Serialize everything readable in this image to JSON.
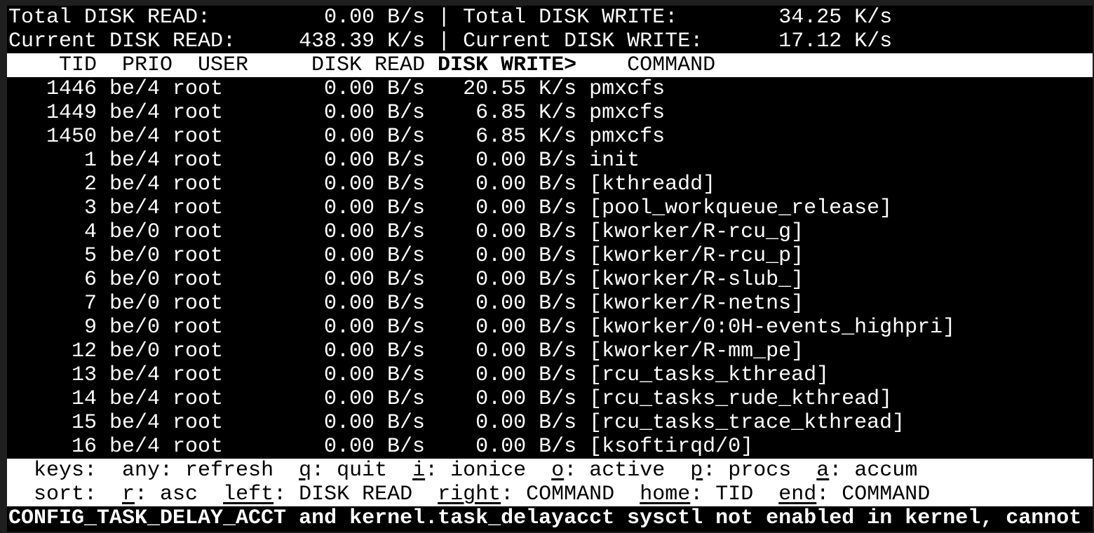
{
  "summary": {
    "total_read_label": "Total DISK READ:",
    "total_read": "0.00 B/s",
    "total_write_label": "Total DISK WRITE:",
    "total_write": "34.25 K/s",
    "current_read_label": "Current DISK READ:",
    "current_read": "438.39 K/s",
    "current_write_label": "Current DISK WRITE:",
    "current_write": "17.12 K/s",
    "separator": "|"
  },
  "header": {
    "tid": "TID",
    "prio": "PRIO",
    "user": "USER",
    "disk_read": "DISK READ",
    "disk_write": "DISK WRITE>",
    "command": "COMMAND"
  },
  "rows": [
    {
      "tid": "1446",
      "prio": "be/4",
      "user": "root",
      "read": "0.00 B/s",
      "write": "20.55 K/s",
      "command": "pmxcfs"
    },
    {
      "tid": "1449",
      "prio": "be/4",
      "user": "root",
      "read": "0.00 B/s",
      "write": "6.85 K/s",
      "command": "pmxcfs"
    },
    {
      "tid": "1450",
      "prio": "be/4",
      "user": "root",
      "read": "0.00 B/s",
      "write": "6.85 K/s",
      "command": "pmxcfs"
    },
    {
      "tid": "1",
      "prio": "be/4",
      "user": "root",
      "read": "0.00 B/s",
      "write": "0.00 B/s",
      "command": "init"
    },
    {
      "tid": "2",
      "prio": "be/4",
      "user": "root",
      "read": "0.00 B/s",
      "write": "0.00 B/s",
      "command": "[kthreadd]"
    },
    {
      "tid": "3",
      "prio": "be/4",
      "user": "root",
      "read": "0.00 B/s",
      "write": "0.00 B/s",
      "command": "[pool_workqueue_release]"
    },
    {
      "tid": "4",
      "prio": "be/0",
      "user": "root",
      "read": "0.00 B/s",
      "write": "0.00 B/s",
      "command": "[kworker/R-rcu_g]"
    },
    {
      "tid": "5",
      "prio": "be/0",
      "user": "root",
      "read": "0.00 B/s",
      "write": "0.00 B/s",
      "command": "[kworker/R-rcu_p]"
    },
    {
      "tid": "6",
      "prio": "be/0",
      "user": "root",
      "read": "0.00 B/s",
      "write": "0.00 B/s",
      "command": "[kworker/R-slub_]"
    },
    {
      "tid": "7",
      "prio": "be/0",
      "user": "root",
      "read": "0.00 B/s",
      "write": "0.00 B/s",
      "command": "[kworker/R-netns]"
    },
    {
      "tid": "9",
      "prio": "be/0",
      "user": "root",
      "read": "0.00 B/s",
      "write": "0.00 B/s",
      "command": "[kworker/0:0H-events_highpri]"
    },
    {
      "tid": "12",
      "prio": "be/0",
      "user": "root",
      "read": "0.00 B/s",
      "write": "0.00 B/s",
      "command": "[kworker/R-mm_pe]"
    },
    {
      "tid": "13",
      "prio": "be/4",
      "user": "root",
      "read": "0.00 B/s",
      "write": "0.00 B/s",
      "command": "[rcu_tasks_kthread]"
    },
    {
      "tid": "14",
      "prio": "be/4",
      "user": "root",
      "read": "0.00 B/s",
      "write": "0.00 B/s",
      "command": "[rcu_tasks_rude_kthread]"
    },
    {
      "tid": "15",
      "prio": "be/4",
      "user": "root",
      "read": "0.00 B/s",
      "write": "0.00 B/s",
      "command": "[rcu_tasks_trace_kthread]"
    },
    {
      "tid": "16",
      "prio": "be/4",
      "user": "root",
      "read": "0.00 B/s",
      "write": "0.00 B/s",
      "command": "[ksoftirqd/0]"
    }
  ],
  "keys": {
    "label": "keys:",
    "items": [
      {
        "key": "any",
        "action": "refresh",
        "underline": false
      },
      {
        "key": "q",
        "action": "quit",
        "underline": true
      },
      {
        "key": "i",
        "action": "ionice",
        "underline": true
      },
      {
        "key": "o",
        "action": "active",
        "underline": true
      },
      {
        "key": "p",
        "action": "procs",
        "underline": true
      },
      {
        "key": "a",
        "action": "accum",
        "underline": true
      }
    ]
  },
  "sort": {
    "label": "sort:",
    "items": [
      {
        "key": "r",
        "action": "asc",
        "underline": true
      },
      {
        "key": "left",
        "action": "DISK READ",
        "underline": true
      },
      {
        "key": "right",
        "action": "COMMAND",
        "underline": true
      },
      {
        "key": "home",
        "action": "TID",
        "underline": true
      },
      {
        "key": "end",
        "action": "COMMAND",
        "underline": true
      }
    ]
  },
  "warning": "CONFIG_TASK_DELAY_ACCT and kernel.task_delayacct sysctl not enabled in kernel, cannot",
  "colors": {
    "background": "#000000",
    "foreground": "#ffffff",
    "frame": "#1f1f1f"
  }
}
